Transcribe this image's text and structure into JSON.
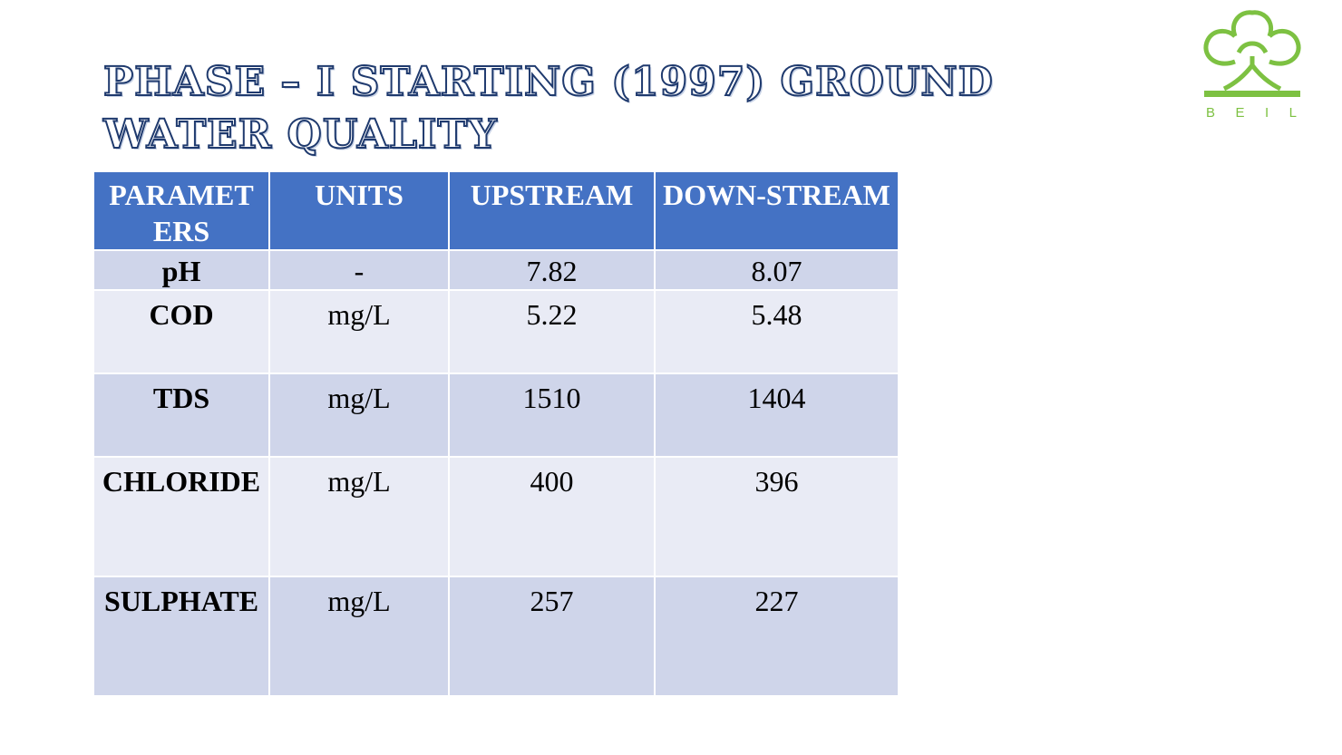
{
  "slide": {
    "title": "PHASE – I STARTING (1997) GROUND WATER QUALITY"
  },
  "logo": {
    "text": "BEIL",
    "letters": [
      "B",
      "E",
      "I",
      "L"
    ],
    "color": "#7dc142"
  },
  "colors": {
    "header_bg": "#4472c4",
    "row_dark": "#cfd5ea",
    "row_light": "#e9ebf5",
    "title_outline": "#1f3a6e"
  },
  "table": {
    "headers": [
      "PARAMETERS",
      "UNITS",
      "UPSTREAM",
      "DOWN-STREAM"
    ],
    "rows": [
      {
        "parameter": "pH",
        "units": "-",
        "upstream": "7.82",
        "downstream": "8.07"
      },
      {
        "parameter": "COD",
        "units": "mg/L",
        "upstream": "5.22",
        "downstream": "5.48"
      },
      {
        "parameter": "TDS",
        "units": "mg/L",
        "upstream": "1510",
        "downstream": "1404"
      },
      {
        "parameter": "CHLORIDE",
        "units": "mg/L",
        "upstream": "400",
        "downstream": "396"
      },
      {
        "parameter": "SULPHATE",
        "units": "mg/L",
        "upstream": "257",
        "downstream": "227"
      }
    ]
  }
}
